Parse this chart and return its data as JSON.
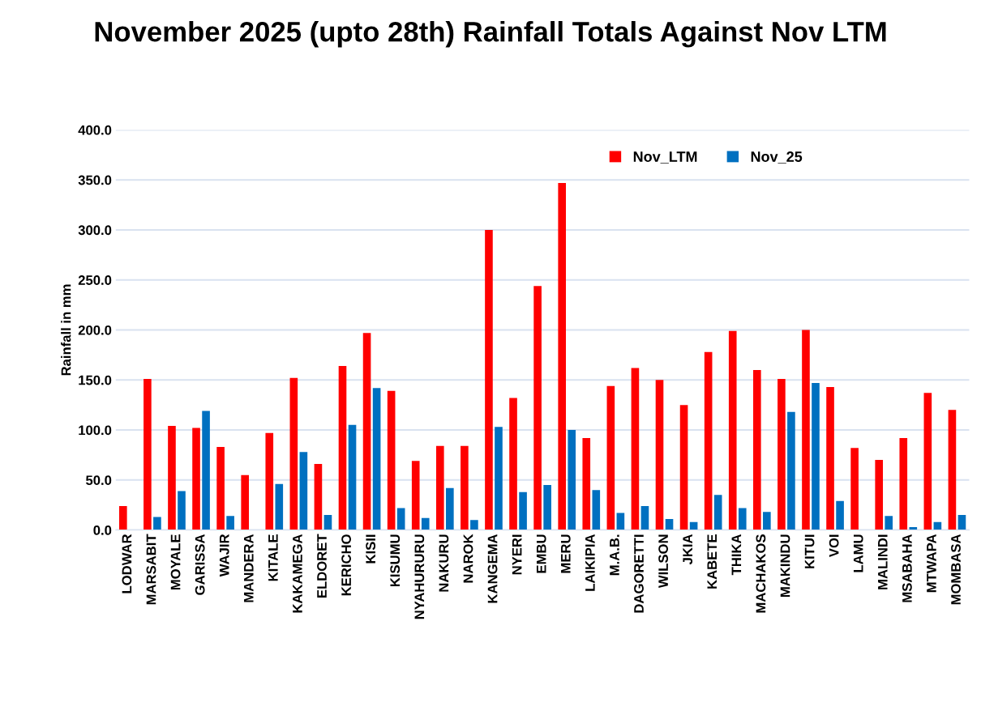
{
  "chart_data": {
    "type": "bar",
    "title": "November 2025 (upto 28th) Rainfall Totals Against Nov LTM",
    "ylabel": "Rainfall in mm",
    "categories": [
      "LODWAR",
      "MARSABIT",
      "MOYALE",
      "GARISSA",
      "WAJIR",
      "MANDERA",
      "KITALE",
      "KAKAMEGA",
      "ELDORET",
      "KERICHO",
      "KISII",
      "KISUMU",
      "NYAHURURU",
      "NAKURU",
      "NAROK",
      "KANGEMA",
      "NYERI",
      "EMBU",
      "MERU",
      "LAIKIPIA",
      "M.A.B.",
      "DAGORETTI",
      "WILSON",
      "JKIA",
      "KABETE",
      "THIKA",
      "MACHAKOS",
      "MAKINDU",
      "KITUI",
      "VOI",
      "LAMU",
      "MALINDI",
      "MSABAHA",
      "MTWAPA",
      "MOMBASA"
    ],
    "series": [
      {
        "name": "Nov_LTM",
        "color": "#ff0000",
        "values": [
          24,
          151,
          104,
          102,
          83,
          55,
          97,
          152,
          66,
          164,
          197,
          139,
          69,
          84,
          84,
          300,
          132,
          244,
          347,
          92,
          144,
          162,
          150,
          125,
          178,
          199,
          160,
          151,
          200,
          143,
          82,
          70,
          92,
          137,
          120
        ]
      },
      {
        "name": "Nov_25",
        "color": "#0070c0",
        "values": [
          0,
          13,
          39,
          119,
          14,
          0,
          46,
          78,
          15,
          105,
          142,
          22,
          12,
          42,
          10,
          103,
          38,
          45,
          100,
          40,
          17,
          24,
          11,
          8,
          35,
          22,
          18,
          118,
          147,
          29,
          0,
          14,
          3,
          8,
          15
        ]
      }
    ],
    "ylim": [
      0,
      400
    ],
    "yticks": [
      {
        "value": 0,
        "label": "0.0"
      },
      {
        "value": 50,
        "label": "50.0"
      },
      {
        "value": 100,
        "label": "100.0"
      },
      {
        "value": 150,
        "label": "150.0"
      },
      {
        "value": 200,
        "label": "200.0"
      },
      {
        "value": 250,
        "label": "250.0"
      },
      {
        "value": 300,
        "label": "300.0"
      },
      {
        "value": 350,
        "label": "350.0"
      },
      {
        "value": 400,
        "label": "400.0"
      }
    ],
    "grid": "y",
    "legend": "top right"
  }
}
